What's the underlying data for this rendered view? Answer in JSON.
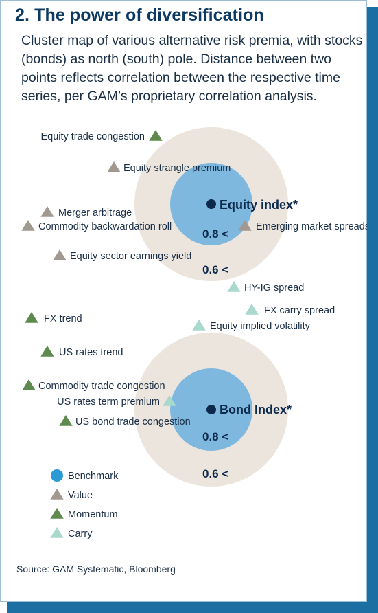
{
  "title": "2. The power of diversification",
  "subtitle": "Cluster map of various alternative risk premia, with stocks (bonds) as north (south) pole. Distance between two points reflects correlation between the respective time series, per GAM’s proprietary correlation analysis.",
  "source": "Source: GAM Systematic, Bloomberg",
  "colors": {
    "title": "#0d3a63",
    "text": "#1a2e45",
    "benchmark_circle": "#7fb8de",
    "outer_ring": "#ece5dd",
    "value": "#a19990",
    "momentum": "#5f8a4f",
    "carry": "#a9d8cd",
    "frame_shadow": "#1c6fa3"
  },
  "poles": [
    {
      "name": "Equity index*",
      "inner_label": "0.8 <",
      "outer_label": "0.6 <"
    },
    {
      "name": "Bond Index*",
      "inner_label": "0.8 <",
      "outer_label": "0.6 <"
    }
  ],
  "points": [
    {
      "label": "Equity trade congestion",
      "category": "momentum"
    },
    {
      "label": "Equity strangle premium",
      "category": "value"
    },
    {
      "label": "Merger arbitrage",
      "category": "value"
    },
    {
      "label": "Commodity backwardation roll",
      "category": "value"
    },
    {
      "label": "Emerging market spreads",
      "category": "value"
    },
    {
      "label": "Equity sector earnings yield",
      "category": "value"
    },
    {
      "label": "HY-IG spread",
      "category": "carry"
    },
    {
      "label": "FX carry spread",
      "category": "carry"
    },
    {
      "label": "Equity implied volatility",
      "category": "carry"
    },
    {
      "label": "FX trend",
      "category": "momentum"
    },
    {
      "label": "US rates trend",
      "category": "momentum"
    },
    {
      "label": "Commodity trade congestion",
      "category": "momentum"
    },
    {
      "label": "US rates term premium",
      "category": "carry"
    },
    {
      "label": "US bond trade congestion",
      "category": "momentum"
    }
  ],
  "legend": [
    {
      "label": "Benchmark",
      "category": "benchmark",
      "shape": "circle"
    },
    {
      "label": "Value",
      "category": "value",
      "shape": "triangle"
    },
    {
      "label": "Momentum",
      "category": "momentum",
      "shape": "triangle"
    },
    {
      "label": "Carry",
      "category": "carry",
      "shape": "triangle"
    }
  ]
}
